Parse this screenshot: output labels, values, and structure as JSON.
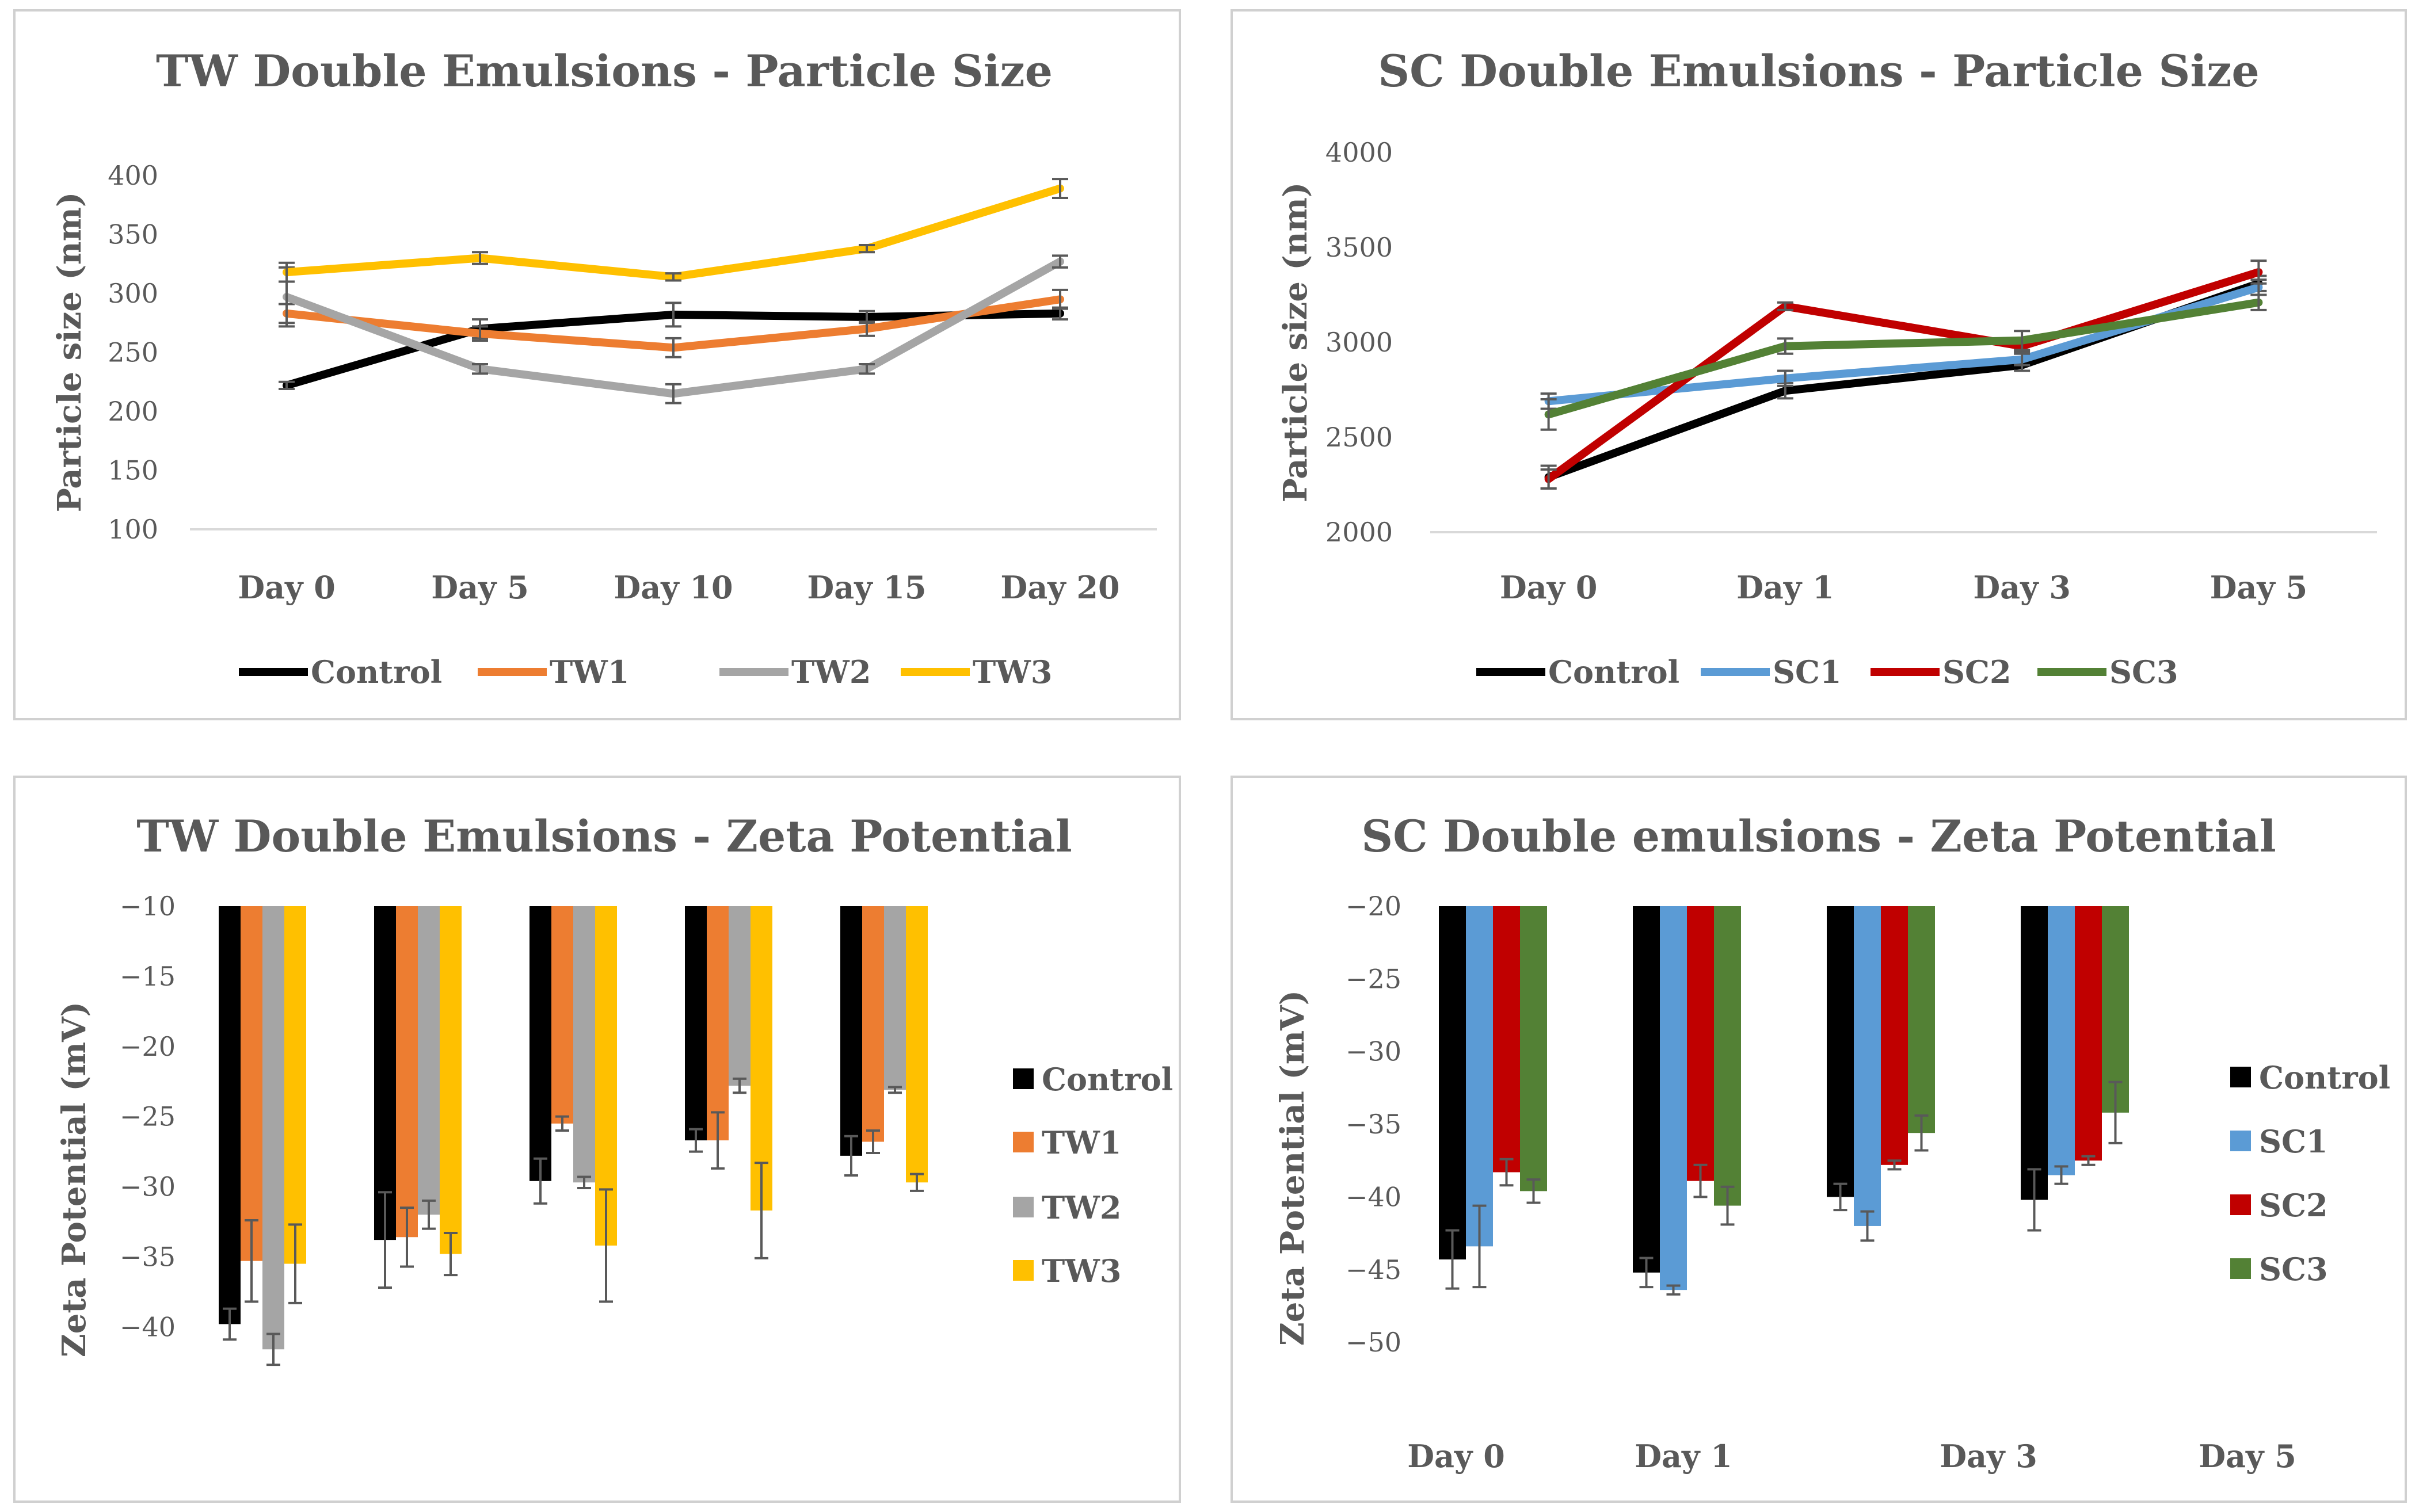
{
  "chart_data": [
    {
      "type": "line",
      "title": "TW Double Emulsions - Particle Size",
      "xlabel": "",
      "ylabel": "Particle size (nm)",
      "ylim": [
        100,
        400
      ],
      "yticks": [
        100,
        150,
        200,
        250,
        300,
        350,
        400
      ],
      "categories": [
        "Day 0",
        "Day 5",
        "Day 10",
        "Day 15",
        "Day 20"
      ],
      "legend_position": "bottom",
      "series": [
        {
          "name": "Control",
          "color": "#000000",
          "values": [
            222,
            270,
            282,
            280,
            283
          ],
          "errors": [
            3,
            8,
            10,
            5,
            5
          ]
        },
        {
          "name": "TW1",
          "color": "#ED7D31",
          "values": [
            283,
            266,
            254,
            270,
            295
          ],
          "errors": [
            8,
            6,
            8,
            6,
            8
          ]
        },
        {
          "name": "TW2",
          "color": "#A5A5A5",
          "values": [
            297,
            236,
            215,
            236,
            327
          ],
          "errors": [
            25,
            4,
            8,
            4,
            5
          ]
        },
        {
          "name": "TW3",
          "color": "#FFC000",
          "values": [
            318,
            330,
            314,
            338,
            389
          ],
          "errors": [
            8,
            5,
            3,
            3,
            8
          ]
        }
      ]
    },
    {
      "type": "line",
      "title": "SC Double Emulsions - Particle Size",
      "xlabel": "",
      "ylabel": "Particle size (nm)",
      "ylim": [
        2000,
        4000
      ],
      "yticks": [
        2000,
        2500,
        3000,
        3500,
        4000
      ],
      "categories": [
        "Day 0",
        "Day 1",
        "Day 3",
        "Day 5"
      ],
      "legend_position": "bottom",
      "series": [
        {
          "name": "Control",
          "color": "#000000",
          "values": [
            2290,
            2745,
            2880,
            3310
          ],
          "errors": [
            60,
            40,
            30,
            40
          ]
        },
        {
          "name": "SC1",
          "color": "#5B9BD5",
          "values": [
            2690,
            2810,
            2910,
            3290
          ],
          "errors": [
            40,
            40,
            30,
            40
          ]
        },
        {
          "name": "SC2",
          "color": "#C00000",
          "values": [
            2280,
            3190,
            2980,
            3370
          ],
          "errors": [
            50,
            20,
            30,
            60
          ]
        },
        {
          "name": "SC3",
          "color": "#538135",
          "values": [
            2620,
            2980,
            3010,
            3210
          ],
          "errors": [
            80,
            40,
            50,
            40
          ]
        }
      ]
    },
    {
      "type": "bar",
      "title": "TW Double Emulsions - Zeta Potential",
      "xlabel": "",
      "ylabel": "Zeta Potential (mV)",
      "ylim": [
        -10,
        -50
      ],
      "yticks": [
        -10,
        -15,
        -20,
        -25,
        -30,
        -35,
        -40
      ],
      "ytick_labels": [
        "−10",
        "−15",
        "−20",
        "−25",
        "−30",
        "−35",
        "−40"
      ],
      "categories": [
        "",
        "",
        "",
        "",
        ""
      ],
      "legend_position": "right",
      "series": [
        {
          "name": "Control",
          "color": "#000000",
          "values": [
            -39.8,
            -33.8,
            -29.6,
            -26.7,
            -27.8
          ],
          "errors": [
            1.1,
            3.4,
            1.6,
            0.8,
            1.4
          ]
        },
        {
          "name": "TW1",
          "color": "#ED7D31",
          "values": [
            -35.3,
            -33.6,
            -25.5,
            -26.7,
            -26.8
          ],
          "errors": [
            2.9,
            2.1,
            0.5,
            2.0,
            0.8
          ]
        },
        {
          "name": "TW2",
          "color": "#A5A5A5",
          "values": [
            -41.6,
            -32.0,
            -29.7,
            -22.8,
            -23.1
          ],
          "errors": [
            1.1,
            1.0,
            0.4,
            0.5,
            0.2
          ]
        },
        {
          "name": "TW3",
          "color": "#FFC000",
          "values": [
            -35.5,
            -34.8,
            -34.2,
            -31.7,
            -29.7
          ],
          "errors": [
            2.8,
            1.5,
            4.0,
            3.4,
            0.6
          ]
        }
      ]
    },
    {
      "type": "bar",
      "title": "SC Double emulsions - Zeta Potential",
      "xlabel": "",
      "ylabel": "Zeta Potential (mV)",
      "ylim": [
        -20,
        -57
      ],
      "yticks": [
        -20,
        -25,
        -30,
        -35,
        -40,
        -45,
        -50
      ],
      "ytick_labels": [
        "−20",
        "−25",
        "−30",
        "−35",
        "−40",
        "−45",
        "−50"
      ],
      "categories": [
        "Day 0",
        "Day 1",
        "Day 3",
        "Day 5"
      ],
      "legend_position": "right",
      "series": [
        {
          "name": "Control",
          "color": "#000000",
          "values": [
            -44.3,
            -45.2,
            -40.0,
            -40.2
          ],
          "errors": [
            2.0,
            1.0,
            0.9,
            2.1
          ]
        },
        {
          "name": "SC1",
          "color": "#5B9BD5",
          "values": [
            -43.4,
            -46.4,
            -42.0,
            -38.5
          ],
          "errors": [
            2.8,
            0.3,
            1.0,
            0.6
          ]
        },
        {
          "name": "SC2",
          "color": "#C00000",
          "values": [
            -38.3,
            -38.9,
            -37.8,
            -37.5
          ],
          "errors": [
            0.9,
            1.1,
            0.3,
            0.3
          ]
        },
        {
          "name": "SC3",
          "color": "#538135",
          "values": [
            -39.6,
            -40.6,
            -35.6,
            -34.2
          ],
          "errors": [
            0.8,
            1.3,
            1.2,
            2.1
          ]
        }
      ]
    }
  ]
}
